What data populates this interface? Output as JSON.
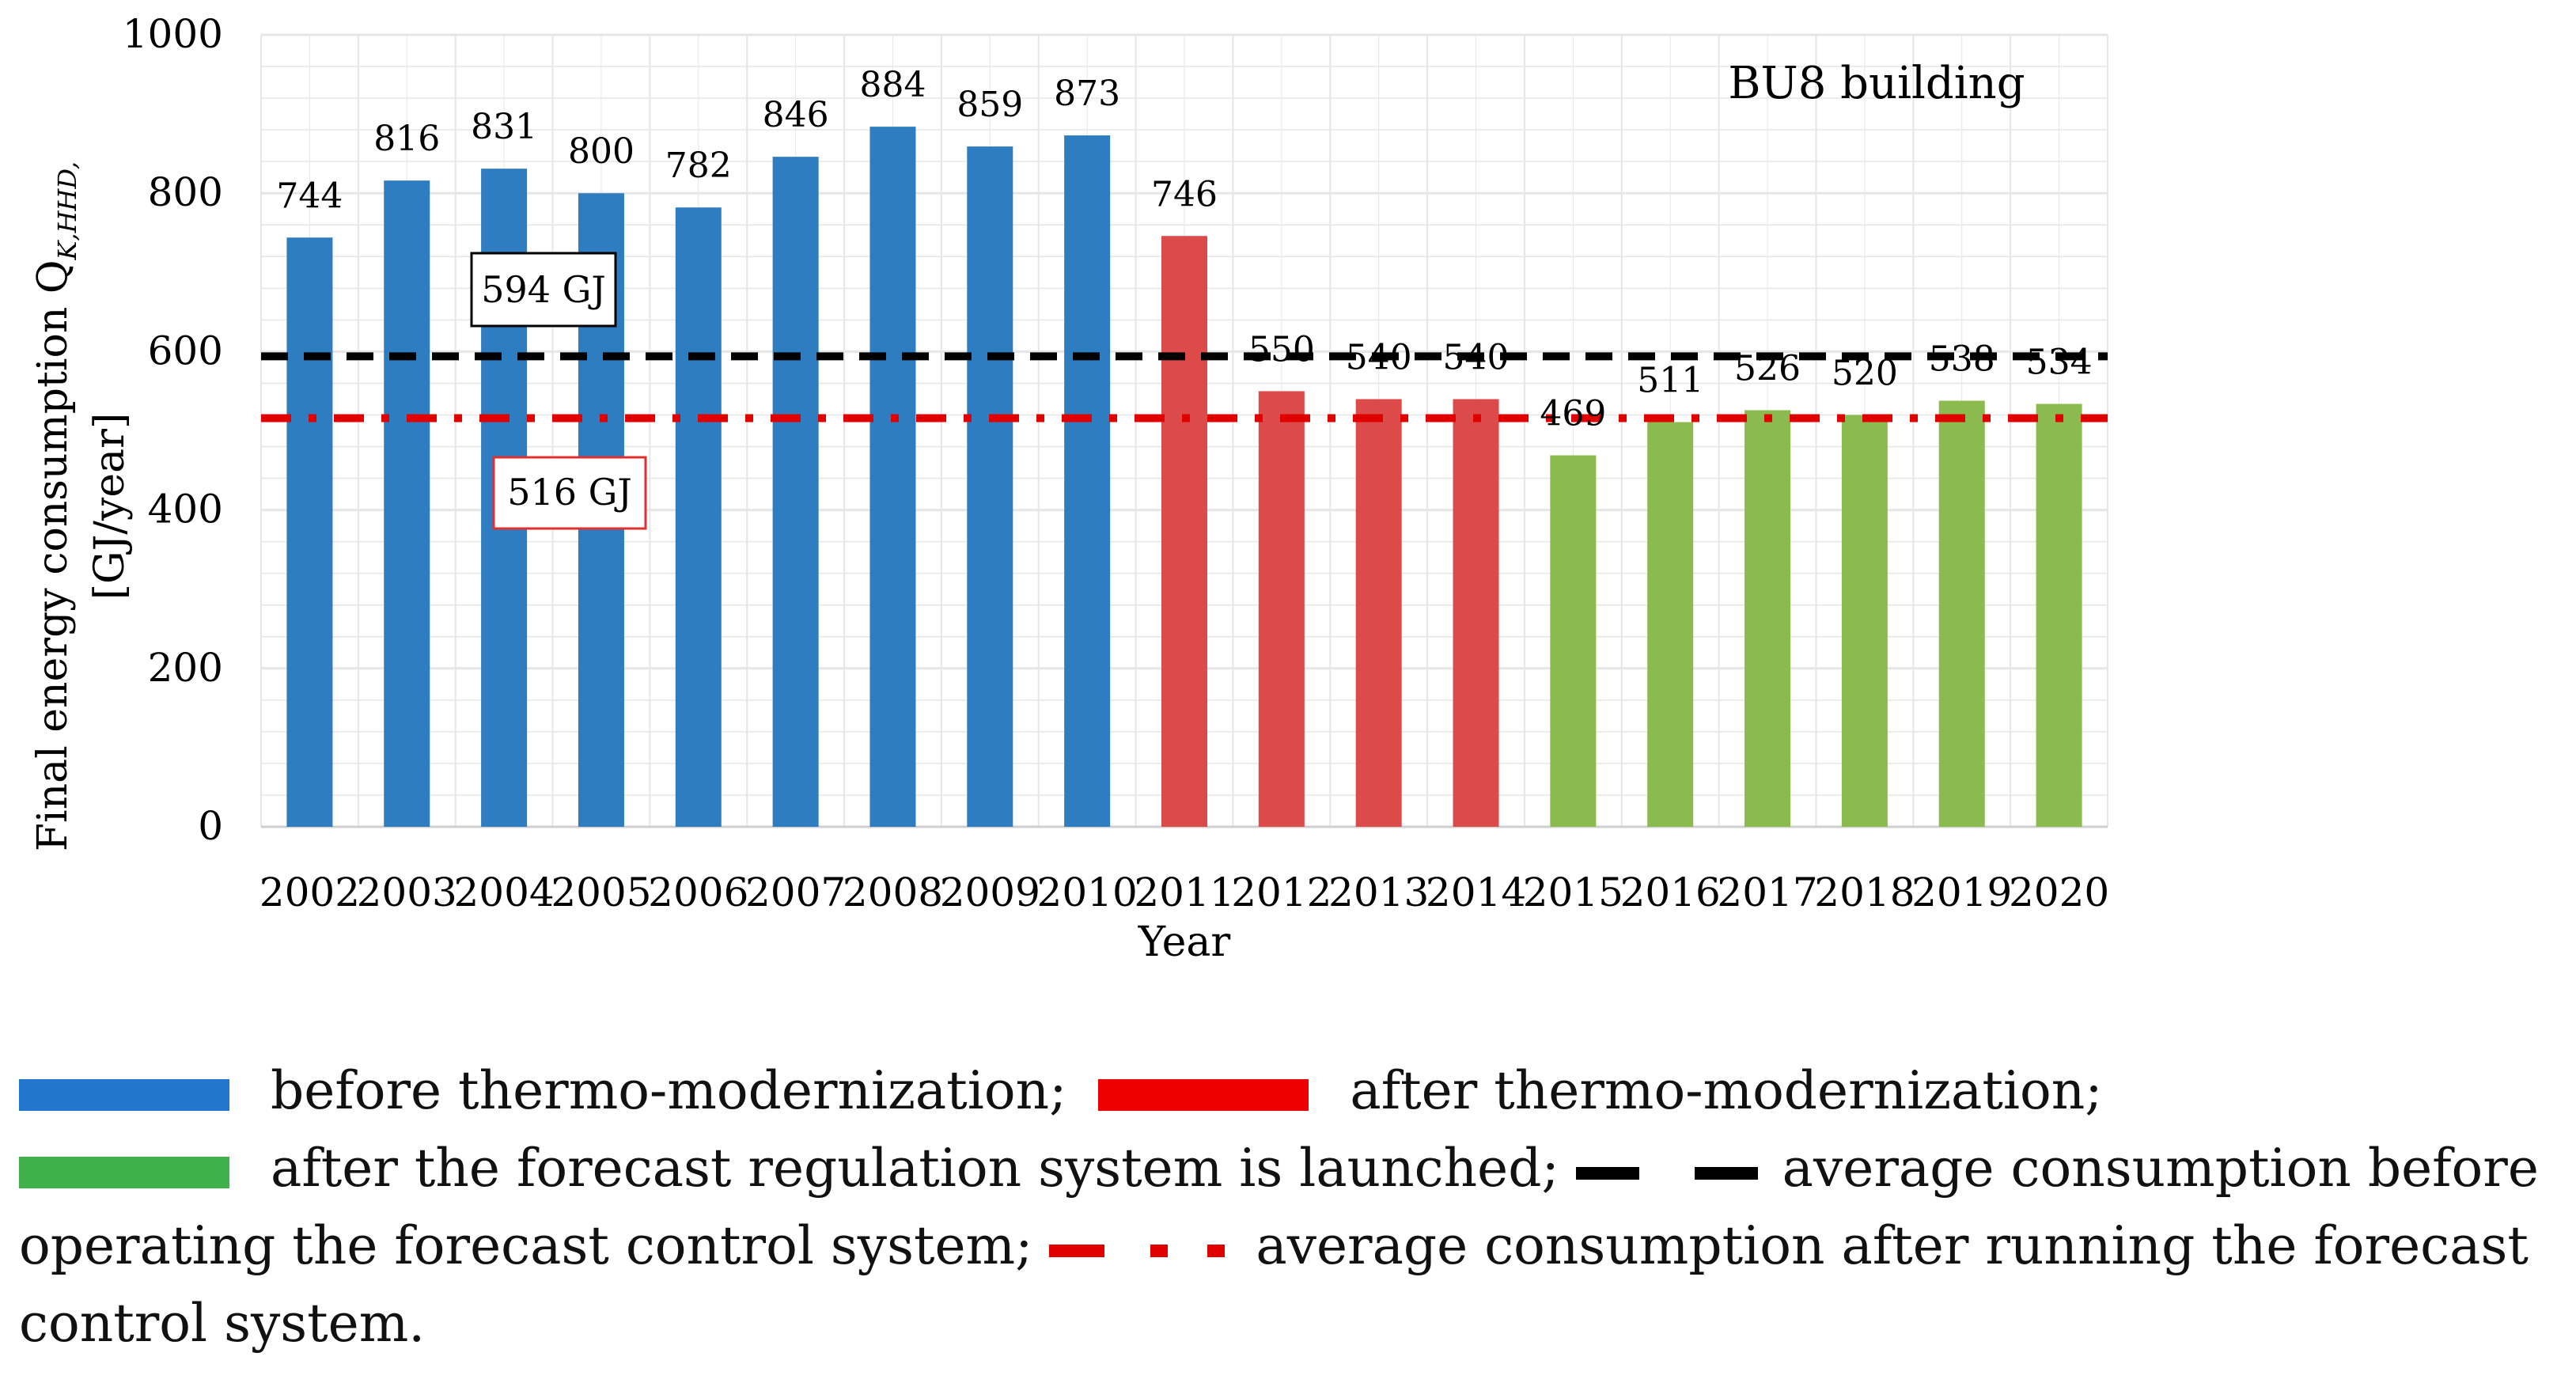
{
  "chart_data": {
    "type": "bar",
    "categories": [
      "2002",
      "2003",
      "2004",
      "2005",
      "2006",
      "2007",
      "2008",
      "2009",
      "2010",
      "2011",
      "2012",
      "2013",
      "2014",
      "2015",
      "2016",
      "2017",
      "2018",
      "2019",
      "2020"
    ],
    "values": [
      744,
      816,
      831,
      800,
      782,
      846,
      884,
      859,
      873,
      746,
      550,
      540,
      540,
      469,
      511,
      526,
      520,
      538,
      534
    ],
    "value_labels": [
      "744",
      "816",
      "831",
      "800",
      "782",
      "846",
      "884",
      "859",
      "873",
      "746",
      "550",
      "540",
      "540",
      "469",
      "511",
      "526",
      "520",
      "538",
      "534"
    ],
    "bar_groups": [
      "before",
      "before",
      "before",
      "before",
      "before",
      "before",
      "before",
      "before",
      "before",
      "after",
      "after",
      "after",
      "after",
      "forecast",
      "forecast",
      "forecast",
      "forecast",
      "forecast",
      "forecast"
    ],
    "xlabel": "Year",
    "ylabel_line1": "Final energy consumption Q",
    "ylabel_sub": "K,HHD,",
    "ylabel_line2": "[GJ/year]",
    "ylim": [
      0,
      1000
    ],
    "yticks": [
      0,
      200,
      400,
      600,
      800,
      1000
    ],
    "grid": true,
    "annotation": "BU8 building",
    "reference_lines": [
      {
        "key": "before",
        "value": 594,
        "label": "594 GJ",
        "style": "dashed",
        "color": "#000000"
      },
      {
        "key": "after",
        "value": 516,
        "label": "516 GJ",
        "style": "dash-dot",
        "color": "#e00000"
      }
    ]
  },
  "colors": {
    "before": "#2e7dc0",
    "after": "#dc4a4a",
    "forecast": "#8bbb4e",
    "legend_before": "#2277cc",
    "legend_after": "#ee0000",
    "legend_forecast": "#3fb04a",
    "grid": "#e6e6e6"
  },
  "legend": {
    "before": "before thermo-modernization;",
    "after": "after thermo-modernization;",
    "forecast": "after the forecast regulation system is launched;",
    "avg_before": "average consumption before operating the forecast control system;",
    "avg_after": "average consumption after running the forecast control system."
  }
}
